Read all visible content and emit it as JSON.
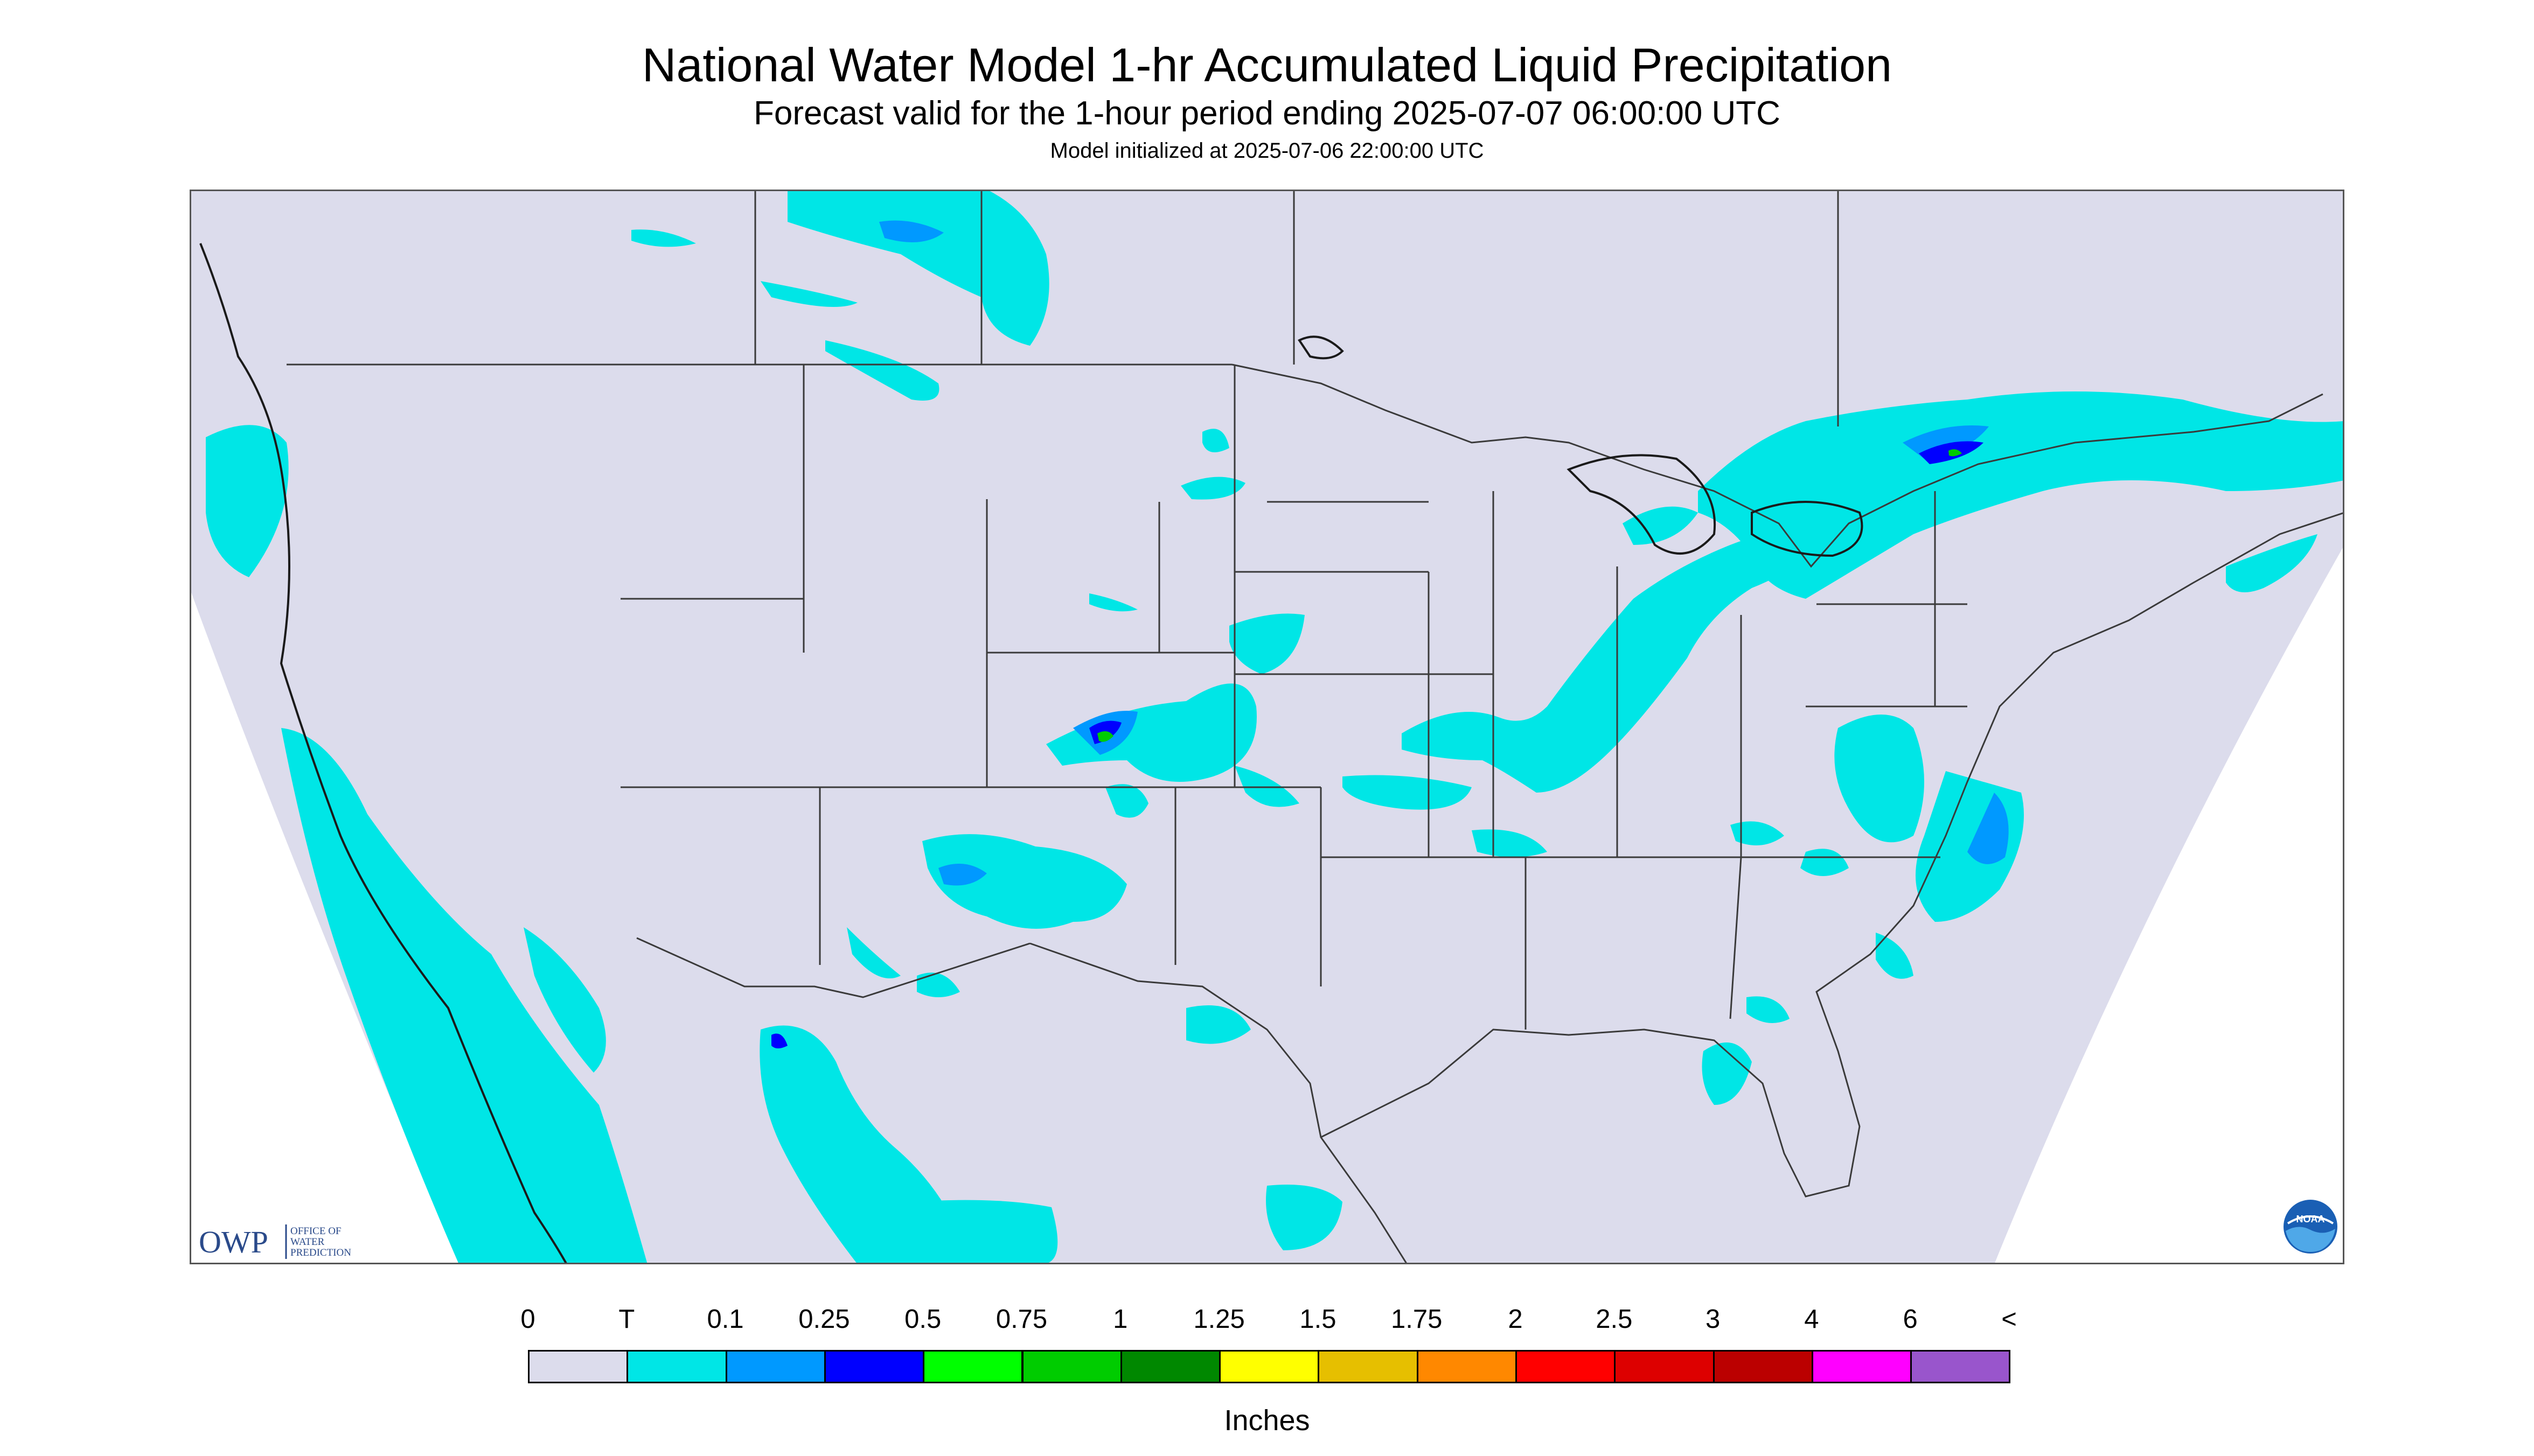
{
  "header": {
    "title": "National Water Model 1-hr Accumulated Liquid Precipitation",
    "subtitle": "Forecast valid for the 1-hour period ending 2025-07-07 06:00:00 UTC",
    "init_line": "Model initialized at 2025-07-06 22:00:00 UTC"
  },
  "logos": {
    "owp_mark": "OWP",
    "owp_lines": [
      "OFFICE OF",
      "WATER",
      "PREDICTION"
    ],
    "noaa_mark": "NOAA"
  },
  "colors": {
    "background_zero": "#dcdcec",
    "land_border": "#3a3a3a",
    "outside_domain": "#ffffff"
  },
  "legend": {
    "labels": [
      "0",
      "T",
      "0.1",
      "0.25",
      "0.5",
      "0.75",
      "1",
      "1.25",
      "1.5",
      "1.75",
      "2",
      "2.5",
      "3",
      "4",
      "6",
      "<"
    ],
    "colors": [
      "#dcdcec",
      "#00e6e6",
      "#0099ff",
      "#0000ff",
      "#00ff00",
      "#00cc00",
      "#008800",
      "#ffff00",
      "#e6bf00",
      "#ff8800",
      "#ff0000",
      "#dd0000",
      "#bb0000",
      "#ff00ff",
      "#9955cc"
    ],
    "units": "Inches"
  }
}
